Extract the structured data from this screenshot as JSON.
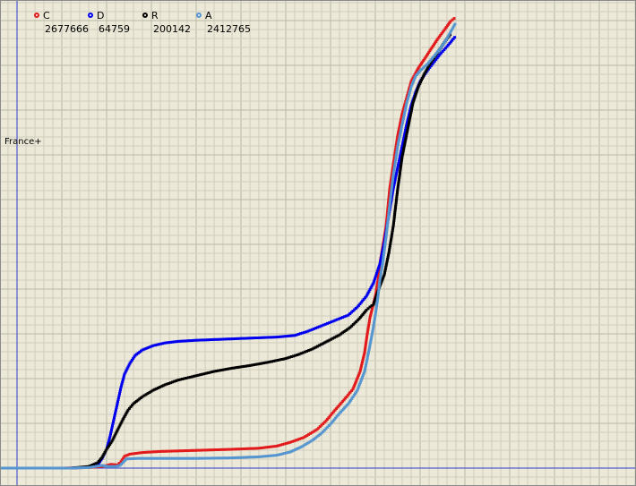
{
  "chart_data": {
    "type": "scatter",
    "title": "",
    "xlabel": "",
    "ylabel": "France+",
    "grid": true,
    "legend_position": "top-left",
    "series": [
      {
        "name": "C",
        "count": "2677666",
        "color": "#e31a1c",
        "points": [
          [
            -20,
            0
          ],
          [
            50,
            0
          ],
          [
            80,
            1
          ],
          [
            95,
            3
          ],
          [
            105,
            7
          ],
          [
            112,
            6
          ],
          [
            116,
            12
          ],
          [
            120,
            22
          ],
          [
            126,
            26
          ],
          [
            140,
            29
          ],
          [
            160,
            31
          ],
          [
            200,
            33
          ],
          [
            240,
            35
          ],
          [
            270,
            37
          ],
          [
            290,
            41
          ],
          [
            305,
            48
          ],
          [
            320,
            57
          ],
          [
            335,
            72
          ],
          [
            345,
            88
          ],
          [
            355,
            108
          ],
          [
            365,
            127
          ],
          [
            375,
            147
          ],
          [
            383,
            180
          ],
          [
            388,
            215
          ],
          [
            391,
            250
          ],
          [
            394,
            280
          ],
          [
            397,
            300
          ],
          [
            400,
            320
          ],
          [
            403,
            350
          ],
          [
            405,
            380
          ],
          [
            408,
            410
          ],
          [
            412,
            450
          ],
          [
            416,
            520
          ],
          [
            420,
            565
          ],
          [
            425,
            620
          ],
          [
            430,
            660
          ],
          [
            435,
            690
          ],
          [
            440,
            720
          ],
          [
            448,
            745
          ],
          [
            455,
            762
          ],
          [
            462,
            780
          ],
          [
            470,
            800
          ],
          [
            478,
            818
          ],
          [
            484,
            832
          ],
          [
            490,
            840
          ]
        ]
      },
      {
        "name": "D",
        "count": "64759",
        "color": "#0000ee",
        "points": [
          [
            -20,
            0
          ],
          [
            60,
            0
          ],
          [
            80,
            2
          ],
          [
            90,
            6
          ],
          [
            95,
            18
          ],
          [
            100,
            35
          ],
          [
            104,
            60
          ],
          [
            108,
            90
          ],
          [
            112,
            120
          ],
          [
            116,
            150
          ],
          [
            120,
            175
          ],
          [
            126,
            195
          ],
          [
            132,
            210
          ],
          [
            140,
            220
          ],
          [
            152,
            228
          ],
          [
            165,
            233
          ],
          [
            180,
            236
          ],
          [
            200,
            238
          ],
          [
            230,
            240
          ],
          [
            260,
            242
          ],
          [
            290,
            244
          ],
          [
            310,
            247
          ],
          [
            325,
            255
          ],
          [
            340,
            265
          ],
          [
            355,
            275
          ],
          [
            370,
            285
          ],
          [
            380,
            300
          ],
          [
            390,
            320
          ],
          [
            398,
            345
          ],
          [
            405,
            380
          ],
          [
            410,
            420
          ],
          [
            415,
            470
          ],
          [
            420,
            520
          ],
          [
            425,
            560
          ],
          [
            430,
            600
          ],
          [
            435,
            640
          ],
          [
            440,
            675
          ],
          [
            445,
            700
          ],
          [
            450,
            720
          ],
          [
            458,
            740
          ],
          [
            465,
            755
          ],
          [
            472,
            770
          ],
          [
            480,
            785
          ],
          [
            490,
            805
          ]
        ]
      },
      {
        "name": "R",
        "count": "200142",
        "color": "#000000",
        "points": [
          [
            -20,
            0
          ],
          [
            60,
            0
          ],
          [
            80,
            3
          ],
          [
            90,
            10
          ],
          [
            95,
            20
          ],
          [
            100,
            35
          ],
          [
            106,
            50
          ],
          [
            112,
            70
          ],
          [
            118,
            90
          ],
          [
            124,
            108
          ],
          [
            130,
            120
          ],
          [
            140,
            133
          ],
          [
            152,
            145
          ],
          [
            165,
            155
          ],
          [
            180,
            164
          ],
          [
            200,
            172
          ],
          [
            220,
            180
          ],
          [
            240,
            186
          ],
          [
            260,
            191
          ],
          [
            280,
            197
          ],
          [
            300,
            204
          ],
          [
            315,
            212
          ],
          [
            330,
            222
          ],
          [
            345,
            235
          ],
          [
            360,
            248
          ],
          [
            372,
            262
          ],
          [
            382,
            278
          ],
          [
            390,
            294
          ],
          [
            394,
            300
          ],
          [
            398,
            305
          ],
          [
            403,
            330
          ],
          [
            410,
            360
          ],
          [
            415,
            400
          ],
          [
            420,
            450
          ],
          [
            425,
            520
          ],
          [
            430,
            580
          ],
          [
            436,
            630
          ],
          [
            442,
            680
          ],
          [
            448,
            710
          ],
          [
            455,
            735
          ],
          [
            462,
            755
          ],
          [
            470,
            775
          ],
          [
            478,
            795
          ],
          [
            485,
            810
          ]
        ]
      },
      {
        "name": "A",
        "count": "2412765",
        "color": "#5595d0",
        "points": [
          [
            -20,
            0
          ],
          [
            60,
            0
          ],
          [
            80,
            1
          ],
          [
            95,
            5
          ],
          [
            102,
            3
          ],
          [
            110,
            3
          ],
          [
            115,
            5
          ],
          [
            118,
            10
          ],
          [
            122,
            17
          ],
          [
            135,
            18
          ],
          [
            160,
            18
          ],
          [
            200,
            18
          ],
          [
            240,
            19
          ],
          [
            270,
            21
          ],
          [
            290,
            24
          ],
          [
            305,
            30
          ],
          [
            318,
            40
          ],
          [
            330,
            52
          ],
          [
            340,
            65
          ],
          [
            350,
            82
          ],
          [
            360,
            102
          ],
          [
            370,
            120
          ],
          [
            380,
            145
          ],
          [
            388,
            180
          ],
          [
            393,
            220
          ],
          [
            397,
            255
          ],
          [
            400,
            285
          ],
          [
            403,
            320
          ],
          [
            405,
            350
          ],
          [
            408,
            380
          ],
          [
            412,
            430
          ],
          [
            416,
            490
          ],
          [
            420,
            545
          ],
          [
            425,
            600
          ],
          [
            430,
            640
          ],
          [
            435,
            680
          ],
          [
            440,
            710
          ],
          [
            445,
            730
          ],
          [
            450,
            740
          ],
          [
            458,
            752
          ],
          [
            465,
            766
          ],
          [
            472,
            780
          ],
          [
            480,
            800
          ],
          [
            490,
            830
          ]
        ]
      }
    ]
  }
}
